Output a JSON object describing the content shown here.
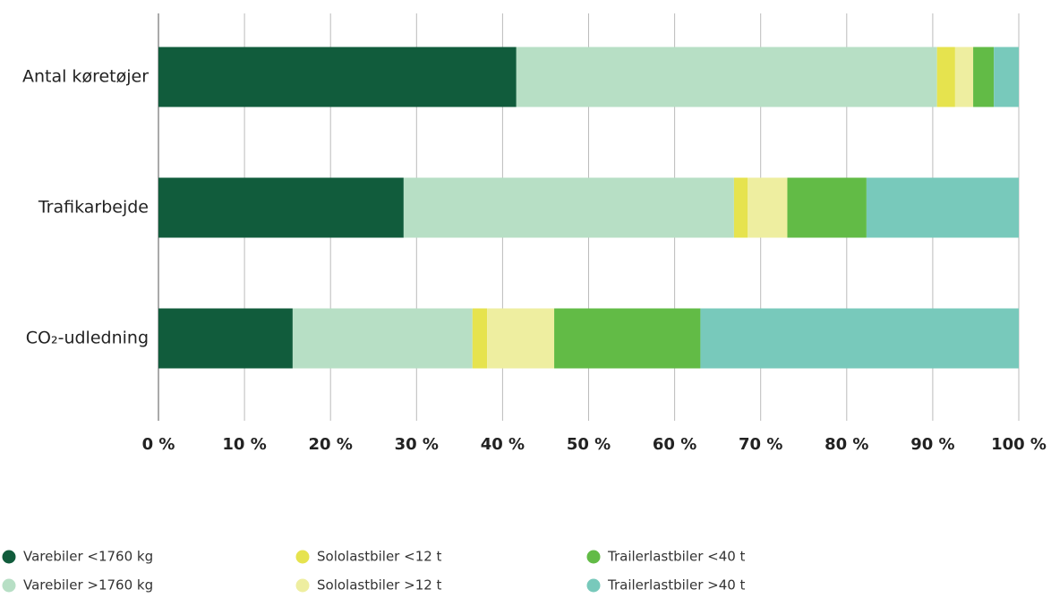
{
  "chart_data": {
    "type": "stacked_barh",
    "categories": [
      "Antal køretøjer",
      "Trafikarbejde",
      "CO₂-udledning"
    ],
    "series": [
      {
        "name": "Varebiler <1760 kg",
        "color": "#115c3c",
        "values": [
          41.6,
          28.5,
          15.6
        ]
      },
      {
        "name": "Varebiler >1760 kg",
        "color": "#b7dfc5",
        "values": [
          48.9,
          38.4,
          20.9
        ]
      },
      {
        "name": "Sololastbiler <12 t",
        "color": "#e6e34e",
        "values": [
          2.1,
          1.6,
          1.7
        ]
      },
      {
        "name": "Sololastbiler >12 t",
        "color": "#eeeea0",
        "values": [
          2.1,
          4.6,
          7.8
        ]
      },
      {
        "name": "Trailerlastbiler <40 t",
        "color": "#62bb46",
        "values": [
          2.4,
          9.2,
          17.0
        ]
      },
      {
        "name": "Trailerlastbiler >40 t",
        "color": "#78c9bb",
        "values": [
          2.9,
          17.7,
          37.0
        ]
      }
    ],
    "xlim": [
      0,
      100
    ],
    "xticks": [
      {
        "value": 0,
        "label": "0 %"
      },
      {
        "value": 10,
        "label": "10 %"
      },
      {
        "value": 20,
        "label": "20 %"
      },
      {
        "value": 30,
        "label": "30 %"
      },
      {
        "value": 40,
        "label": "40 %"
      },
      {
        "value": 50,
        "label": "50 %"
      },
      {
        "value": 60,
        "label": "60 %"
      },
      {
        "value": 70,
        "label": "70 %"
      },
      {
        "value": 80,
        "label": "80 %"
      },
      {
        "value": 90,
        "label": "90 %"
      },
      {
        "value": 100,
        "label": "100 %"
      }
    ],
    "grid": true,
    "legend": "bottom"
  }
}
